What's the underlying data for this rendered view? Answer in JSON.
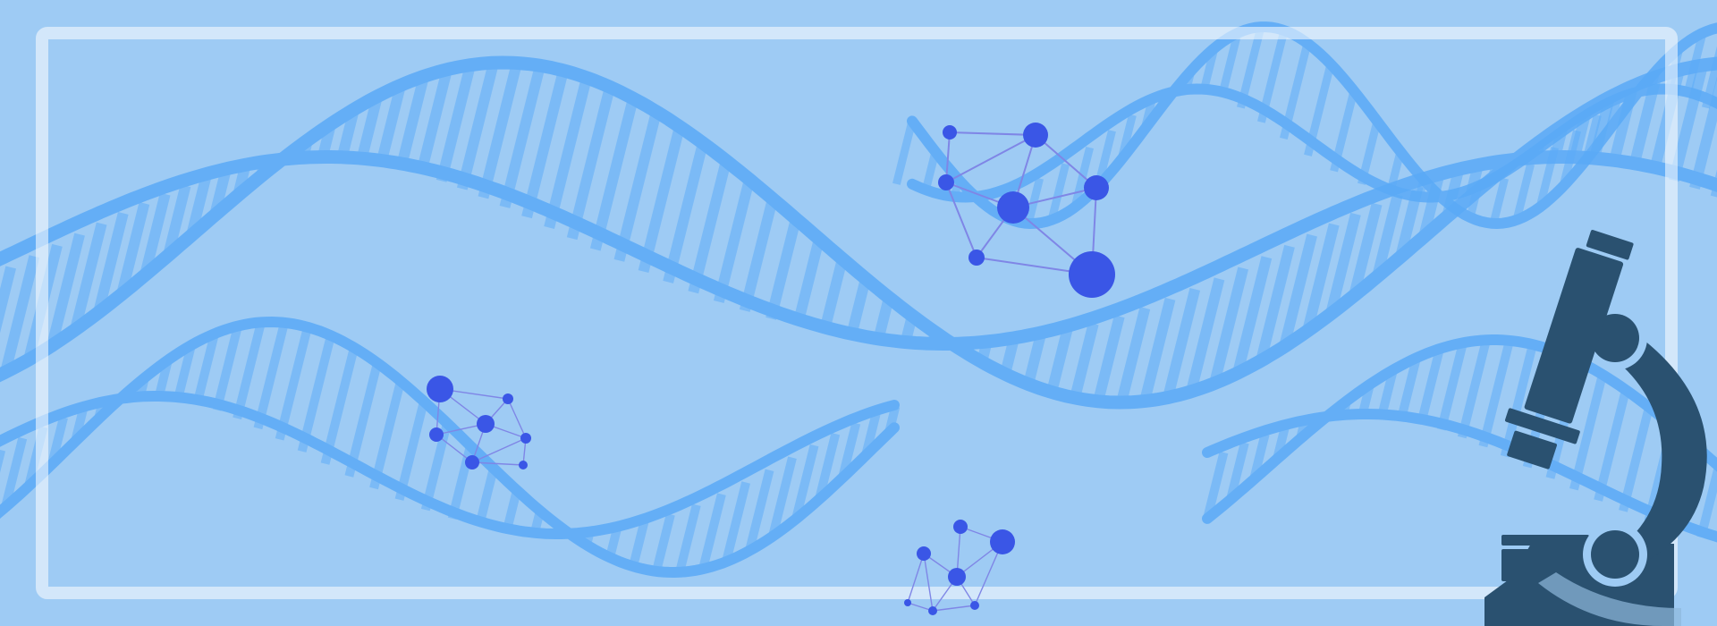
{
  "banner": {
    "description_visible_text": "",
    "palette": {
      "background": "#9ecbf4",
      "helix": "#5aaaf7",
      "frame": "#ffffff",
      "molecule_node": "#3a56e6",
      "molecule_edge": "#7f86e6",
      "microscope": "#2a5170"
    }
  },
  "molecules": [
    {
      "name": "molecule-large",
      "node_count": 7,
      "edge_count": 10
    },
    {
      "name": "molecule-small-left",
      "node_count": 7,
      "edge_count": 9
    },
    {
      "name": "molecule-small-bottom",
      "node_count": 7,
      "edge_count": 9
    }
  ],
  "decorations": {
    "helix_count": 4,
    "icons": [
      "dna-helix-icon",
      "molecule-icon",
      "microscope-icon"
    ]
  }
}
